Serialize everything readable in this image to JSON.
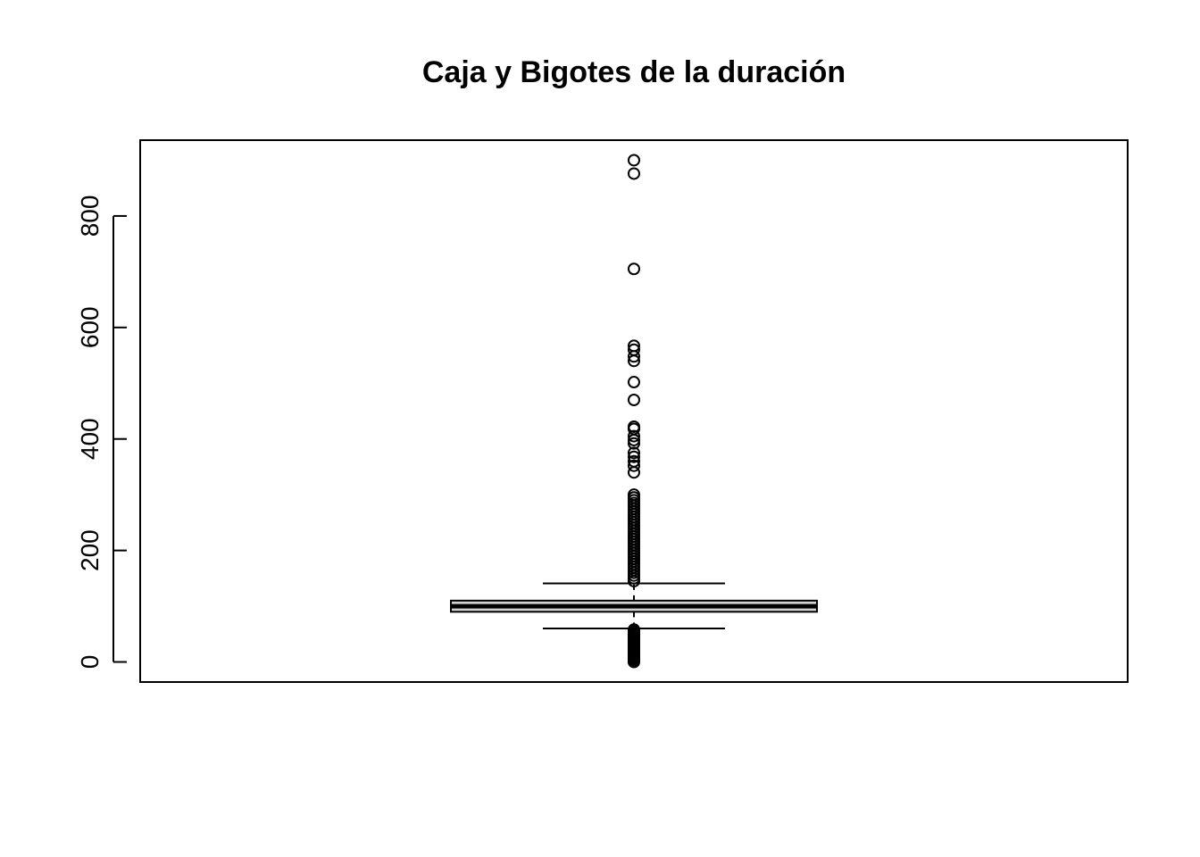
{
  "chart_data": {
    "type": "boxplot",
    "title": "Caja y Bigotes de la duración",
    "xlabel": "",
    "ylabel": "",
    "ylim": [
      -36,
      936
    ],
    "y_ticks": [
      0,
      200,
      400,
      600,
      800
    ],
    "y_tick_labels": [
      "0",
      "200",
      "400",
      "600",
      "800"
    ],
    "box": {
      "q1": 90,
      "median": 100,
      "q3": 110,
      "whisker_low": 60,
      "whisker_high": 141
    },
    "outliers": [
      900,
      876,
      705,
      567,
      560,
      548,
      540,
      502,
      470,
      422,
      418,
      405,
      398,
      392,
      375,
      368,
      360,
      352,
      340,
      300,
      295,
      290,
      285,
      280,
      275,
      270,
      265,
      260,
      255,
      250,
      245,
      240,
      235,
      230,
      225,
      220,
      215,
      210,
      205,
      200,
      195,
      190,
      185,
      180,
      175,
      170,
      165,
      160,
      155,
      150,
      145,
      58,
      55,
      52,
      50,
      47,
      45,
      42,
      40,
      37,
      35,
      32,
      30,
      27,
      25,
      22,
      20,
      17,
      15,
      12,
      10,
      7,
      5,
      3,
      1,
      0
    ],
    "grid": false,
    "colors": {
      "stroke": "#000000",
      "box_fill": "#d3d3d3",
      "background": "#ffffff"
    }
  }
}
